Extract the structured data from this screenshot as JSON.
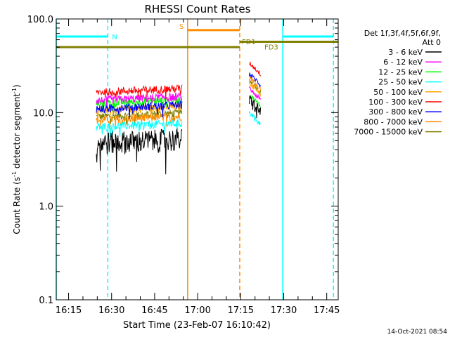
{
  "chart_data": {
    "type": "line",
    "title": "RHESSI Count Rates",
    "xlabel": "Start Time (23-Feb-07 16:10:42)",
    "ylabel": "Count Rate (s",
    "ylabel_sup1": "-1",
    "ylabel_mid": " detector segment",
    "ylabel_sup2": "-1",
    "ylabel_end": ")",
    "x_units": "minutes after 16:10:42",
    "xlim_time": [
      "16:10:42",
      "17:49:00"
    ],
    "ylim": [
      0.1,
      100.0
    ],
    "y_scale": "log",
    "x_ticks": [
      "16:15",
      "16:30",
      "16:45",
      "17:00",
      "17:15",
      "17:30",
      "17:45"
    ],
    "y_ticks": [
      "0.1",
      "1.0",
      "10.0",
      "100.0"
    ],
    "legend": {
      "placement": "right",
      "header1": "Det 1f,3f,4f,5f,6f,9f,",
      "header2": "Att 0"
    },
    "series": [
      {
        "name": "3 - 6 keV",
        "color": "#000000",
        "segments": [
          {
            "start": "16:24:40",
            "end": "16:54:40",
            "level": 4.8
          },
          {
            "start": "17:18:00",
            "end": "17:22:00",
            "level": 13.5
          }
        ]
      },
      {
        "name": "6 - 12 keV",
        "color": "#ff00ff",
        "segments": [
          {
            "start": "16:24:40",
            "end": "16:54:40",
            "level": 13.5
          },
          {
            "start": "17:18:00",
            "end": "17:22:00",
            "level": 18.0
          }
        ]
      },
      {
        "name": "12 - 25 keV",
        "color": "#00ff00",
        "segments": [
          {
            "start": "16:24:40",
            "end": "16:54:40",
            "level": 12.5
          },
          {
            "start": "17:18:00",
            "end": "17:22:00",
            "level": 15.5
          }
        ]
      },
      {
        "name": "25 - 50 keV",
        "color": "#00ffff",
        "segments": [
          {
            "start": "16:24:40",
            "end": "16:54:40",
            "level": 7.0
          },
          {
            "start": "17:18:00",
            "end": "17:22:00",
            "level": 10.0
          }
        ]
      },
      {
        "name": "50 - 100 keV",
        "color": "#ffa500",
        "segments": [
          {
            "start": "16:24:40",
            "end": "16:54:40",
            "level": 10.5
          },
          {
            "start": "17:18:00",
            "end": "17:22:00",
            "level": 21.0
          }
        ]
      },
      {
        "name": "100 - 300 keV",
        "color": "#ff0000",
        "segments": [
          {
            "start": "16:24:40",
            "end": "16:54:40",
            "level": 16.5
          },
          {
            "start": "17:18:00",
            "end": "17:22:00",
            "level": 34.0
          }
        ]
      },
      {
        "name": "300 - 800 keV",
        "color": "#0000ff",
        "segments": [
          {
            "start": "16:24:40",
            "end": "16:54:40",
            "level": 11.0
          },
          {
            "start": "17:18:00",
            "end": "17:22:00",
            "level": 26.0
          }
        ]
      },
      {
        "name": "800 - 7000 keV",
        "color": "#ff8c00",
        "segments": [
          {
            "start": "16:24:40",
            "end": "16:54:40",
            "level": 8.3
          },
          {
            "start": "17:18:00",
            "end": "17:22:00",
            "level": 24.0
          }
        ]
      },
      {
        "name": "7000 - 15000 keV",
        "color": "#808000",
        "segments": [
          {
            "start": "16:24:40",
            "end": "16:54:40",
            "level": 9.0
          },
          {
            "start": "17:18:00",
            "end": "17:22:00",
            "level": 22.0
          }
        ]
      }
    ],
    "annotations": [
      {
        "label": "N",
        "color": "#00ffff",
        "start": "16:10:42",
        "end": "16:28:40",
        "level": 65.0
      },
      {
        "label": "",
        "color": "#00ffff",
        "start": "17:29:40",
        "end": "17:47:20",
        "level": 65.0
      },
      {
        "label": "S",
        "color": "#ff8c00",
        "start": "16:56:30",
        "end": "17:14:40",
        "level": 76.0
      },
      {
        "label": "FD1",
        "color": "#808000",
        "start": "16:10:42",
        "end": "17:14:40",
        "level": 50.0
      },
      {
        "label": "FD3",
        "color": "#808000",
        "start": "17:14:40",
        "end": "17:49:00",
        "level": 57.0
      }
    ],
    "vlines": [
      {
        "time": "16:10:42",
        "color": "#00ffff",
        "style": "solid"
      },
      {
        "time": "16:28:40",
        "color": "#00ffff",
        "style": "dashed"
      },
      {
        "time": "16:56:30",
        "color": "#ff8c00",
        "style": "solid"
      },
      {
        "time": "17:14:40",
        "color": "#ff8c00",
        "style": "dashed"
      },
      {
        "time": "17:29:40",
        "color": "#00ffff",
        "style": "solid"
      },
      {
        "time": "17:47:20",
        "color": "#00ffff",
        "style": "dashed"
      }
    ]
  },
  "footer_date": "14-Oct-2021 08:54"
}
